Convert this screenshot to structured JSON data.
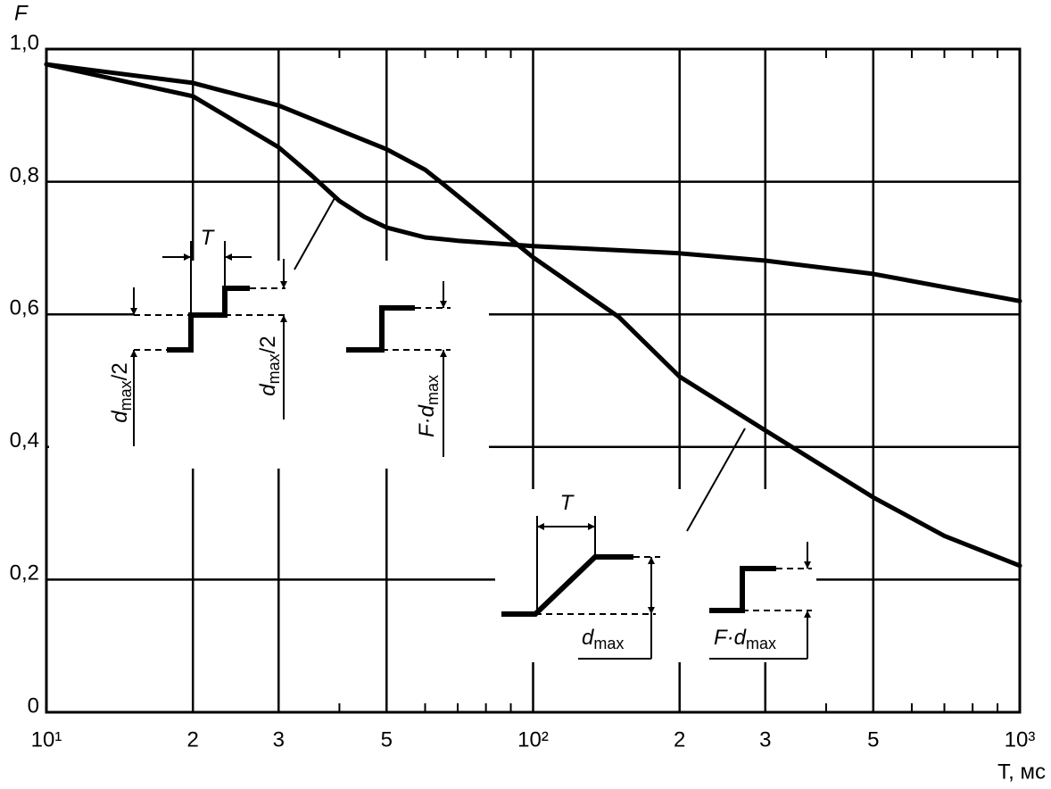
{
  "chart_data": {
    "type": "line",
    "x_label": "T, мс",
    "y_label": "F",
    "log_x": true,
    "grid": true,
    "color": "#000000",
    "xlim": [
      10,
      1000
    ],
    "ylim": [
      0,
      1
    ],
    "xticks": [
      {
        "value": 10,
        "label": "10¹"
      },
      {
        "value": 20,
        "label": "2"
      },
      {
        "value": 30,
        "label": "3"
      },
      {
        "value": 50,
        "label": "5"
      },
      {
        "value": 100,
        "label": "10²"
      },
      {
        "value": 200,
        "label": "2"
      },
      {
        "value": 300,
        "label": "3"
      },
      {
        "value": 500,
        "label": "5"
      },
      {
        "value": 1000,
        "label": "10³"
      }
    ],
    "xminor_ticks": [
      40,
      60,
      70,
      80,
      90,
      400,
      600,
      700,
      800,
      900
    ],
    "yticks": [
      0,
      {
        "value": 0.2,
        "label": "0,2"
      },
      {
        "value": 0.4,
        "label": "0,4"
      },
      {
        "value": 0.6,
        "label": "0,6"
      },
      {
        "value": 0.8,
        "label": "0,8"
      },
      {
        "value": 1,
        "label": "1,0"
      }
    ],
    "series": [
      {
        "x": [
          10,
          20,
          30,
          35,
          40,
          45,
          50,
          60,
          70,
          100,
          200,
          300,
          500,
          1000
        ],
        "values": [
          0.977,
          0.929,
          0.852,
          0.81,
          0.771,
          0.747,
          0.731,
          0.716,
          0.711,
          0.703,
          0.692,
          0.681,
          0.661,
          0.62
        ]
      },
      {
        "x": [
          10,
          20,
          30,
          50,
          60,
          65,
          80,
          100,
          150,
          200,
          300,
          500,
          700,
          1000
        ],
        "values": [
          0.977,
          0.949,
          0.915,
          0.849,
          0.818,
          0.798,
          0.744,
          0.686,
          0.596,
          0.506,
          0.425,
          0.324,
          0.266,
          0.221
        ]
      }
    ],
    "annotations": [
      {
        "base": "T"
      },
      {
        "base": "d",
        "sub": "max",
        "tail": "/2"
      },
      {
        "base": "d",
        "sub": "max",
        "tail": "/2"
      },
      {
        "base": "F·d",
        "sub": "max"
      },
      {
        "base": "T"
      },
      {
        "base": "d",
        "sub": "max"
      },
      {
        "base": "F·d",
        "sub": "max"
      }
    ]
  }
}
